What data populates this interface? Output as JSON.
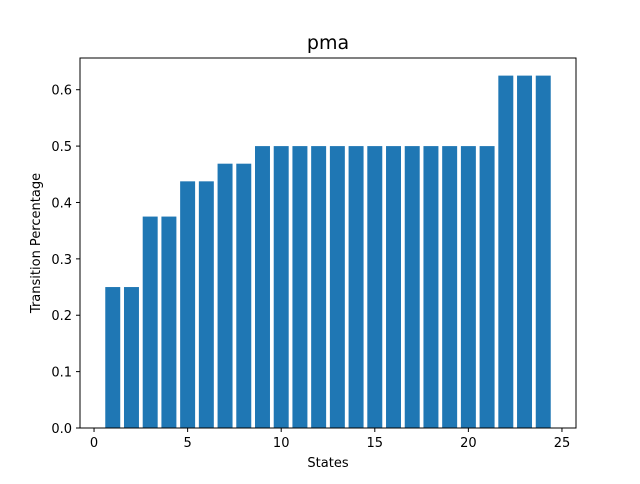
{
  "chart_data": {
    "type": "bar",
    "title": "pma",
    "xlabel": "States",
    "ylabel": "Transition Percentage",
    "x": [
      1,
      2,
      3,
      4,
      5,
      6,
      7,
      8,
      9,
      10,
      11,
      12,
      13,
      14,
      15,
      16,
      17,
      18,
      19,
      20,
      21,
      22,
      23,
      24
    ],
    "values": [
      0.25,
      0.25,
      0.375,
      0.375,
      0.4375,
      0.4375,
      0.4688,
      0.4688,
      0.5,
      0.5,
      0.5,
      0.5,
      0.5,
      0.5,
      0.5,
      0.5,
      0.5,
      0.5,
      0.5,
      0.5,
      0.5,
      0.625,
      0.625,
      0.625
    ],
    "xlim": [
      -0.75,
      25.75
    ],
    "ylim": [
      0,
      0.65625
    ],
    "xticks": [
      0,
      5,
      10,
      15,
      20,
      25
    ],
    "xtick_labels": [
      "0",
      "5",
      "10",
      "15",
      "20",
      "25"
    ],
    "yticks": [
      0,
      0.1,
      0.2,
      0.3,
      0.4,
      0.5,
      0.6
    ],
    "ytick_labels": [
      "0.0",
      "0.1",
      "0.2",
      "0.3",
      "0.4",
      "0.5",
      "0.6"
    ],
    "grid": false,
    "bar_color": "#1f77b4"
  }
}
